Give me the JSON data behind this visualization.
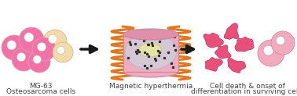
{
  "bg_color": "#ffffff",
  "label_fontsize": 6.5,
  "panel1_label1": "MG-63",
  "panel1_label2": "Osteosarcoma cells",
  "panel2_label": "Magnetic hyperthermia",
  "panel3_label1": "Cell death & onset of",
  "panel3_label2": "differentiation in surviving cells",
  "pink_cell_color": "#F272A8",
  "beige_cell_color": "#F2DAAD",
  "cell_edge_color": "#D8A0A8",
  "beige_edge_color": "#DABA80",
  "coil_color": "#E07820",
  "cylinder_fill": "#F2AABF",
  "cylinder_top_fill": "#E090AA",
  "inner_ellipse_fill": "#C8D4E0",
  "inner_ellipse_edge": "#A0B8C8",
  "inner_blob_color": "#E8E8A0",
  "inner_blob_edge": "#C8C870",
  "dot_color": "#303030",
  "dead_cell_color": "#E8507A",
  "dead_cell_edge": "#C83060",
  "survivor_cell_color": "#F2AABF",
  "survivor_cell_edge": "#D888A0",
  "arrow_color": "#1A1A1A",
  "label_color": "#404040"
}
